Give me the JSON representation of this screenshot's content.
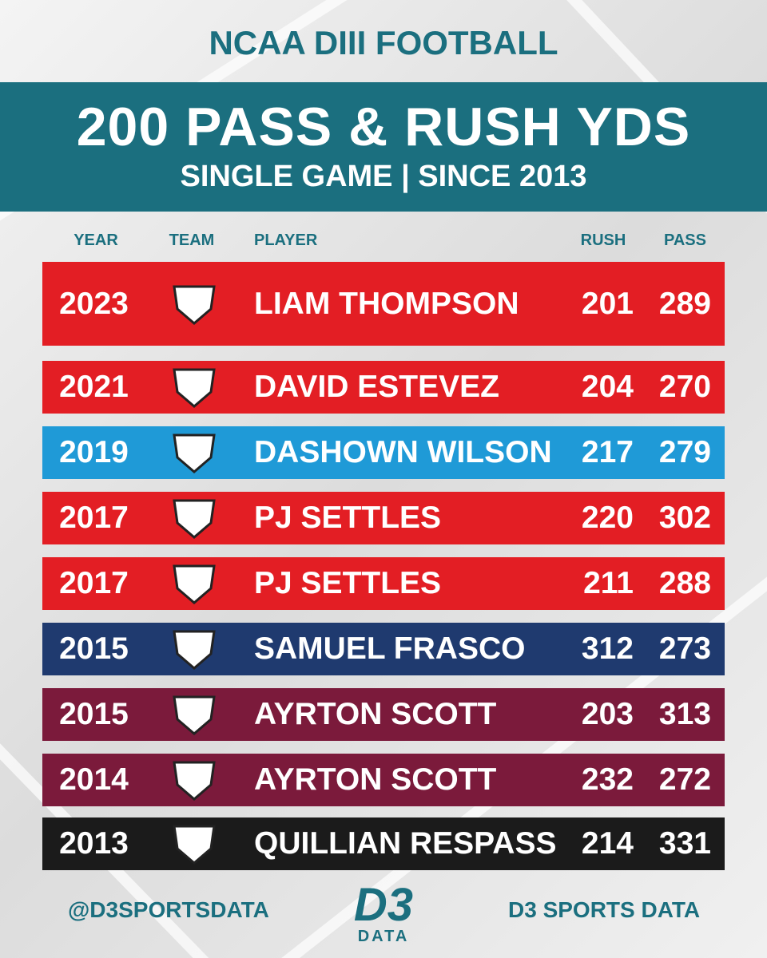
{
  "header": {
    "kicker": "NCAA DIII FOOTBALL",
    "title": "200 PASS & RUSH YDS",
    "subtitle": "SINGLE GAME | SINCE 2013"
  },
  "table": {
    "columns": [
      "YEAR",
      "TEAM",
      "PLAYER",
      "RUSH",
      "PASS"
    ],
    "rows": [
      {
        "year": 2023,
        "player": "LIAM THOMPSON",
        "rush": 201,
        "pass": 289,
        "color": "#e31e24"
      },
      {
        "year": 2021,
        "player": "DAVID ESTEVEZ",
        "rush": 204,
        "pass": 270,
        "color": "#e31e24"
      },
      {
        "year": 2019,
        "player": "DASHOWN WILSON",
        "rush": 217,
        "pass": 279,
        "color": "#1f9ad7"
      },
      {
        "year": 2017,
        "player": "PJ SETTLES",
        "rush": 220,
        "pass": 302,
        "color": "#e31e24"
      },
      {
        "year": 2017,
        "player": "PJ SETTLES",
        "rush": 211,
        "pass": 288,
        "color": "#e31e24"
      },
      {
        "year": 2015,
        "player": "SAMUEL FRASCO",
        "rush": 312,
        "pass": 273,
        "color": "#1f3a6f"
      },
      {
        "year": 2015,
        "player": "AYRTON SCOTT",
        "rush": 203,
        "pass": 313,
        "color": "#7b1a3b"
      },
      {
        "year": 2014,
        "player": "AYRTON SCOTT",
        "rush": 232,
        "pass": 272,
        "color": "#7b1a3b"
      },
      {
        "year": 2013,
        "player": "QUILLIAN RESPASS",
        "rush": 214,
        "pass": 331,
        "color": "#1b1b1b"
      }
    ]
  },
  "footer": {
    "left": "@D3SPORTSDATA",
    "logo_top": "D3",
    "logo_bottom": "DATA",
    "right": "D3 SPORTS DATA"
  }
}
